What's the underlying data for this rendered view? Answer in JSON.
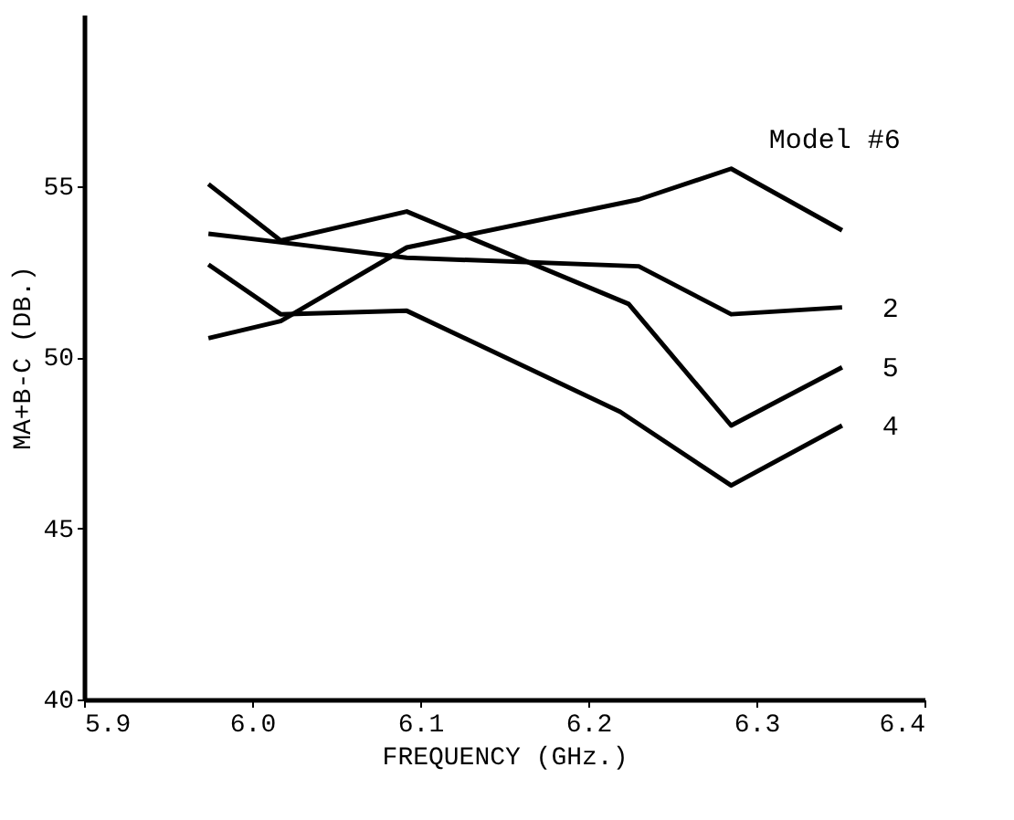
{
  "chart_data": {
    "type": "line",
    "xlabel": "FREQUENCY (GHz.)",
    "ylabel": "MA+B-C (DB.)",
    "xlim": [
      5.9,
      6.4
    ],
    "xticks": [
      5.9,
      {
        "value": 6.0,
        "label": "6.0"
      },
      6.1,
      6.2,
      6.3,
      6.4
    ],
    "ylim": [
      40,
      60
    ],
    "yticks": [
      40,
      45,
      50,
      55
    ],
    "grid": false,
    "legend": false,
    "marker": "none",
    "line_style": "solid",
    "series": [
      {
        "name": "Model #6",
        "color": "#000000",
        "x": [
          5.974,
          6.017,
          6.092,
          6.23,
          6.285,
          6.351
        ],
        "values": [
          50.55,
          51.05,
          53.2,
          54.6,
          55.5,
          53.7
        ]
      },
      {
        "name": "2",
        "color": "#000000",
        "x": [
          5.974,
          6.017,
          6.092,
          6.23,
          6.285,
          6.351
        ],
        "values": [
          53.6,
          53.35,
          52.9,
          52.65,
          51.25,
          51.45
        ]
      },
      {
        "name": "5",
        "color": "#000000",
        "x": [
          5.974,
          6.017,
          6.092,
          6.224,
          6.285,
          6.351
        ],
        "values": [
          55.05,
          53.4,
          54.25,
          51.55,
          48.0,
          49.7
        ]
      },
      {
        "name": "4",
        "color": "#000000",
        "x": [
          5.974,
          6.017,
          6.092,
          6.219,
          6.285,
          6.351
        ],
        "values": [
          52.7,
          51.25,
          51.35,
          48.4,
          46.25,
          48.0
        ]
      }
    ]
  }
}
